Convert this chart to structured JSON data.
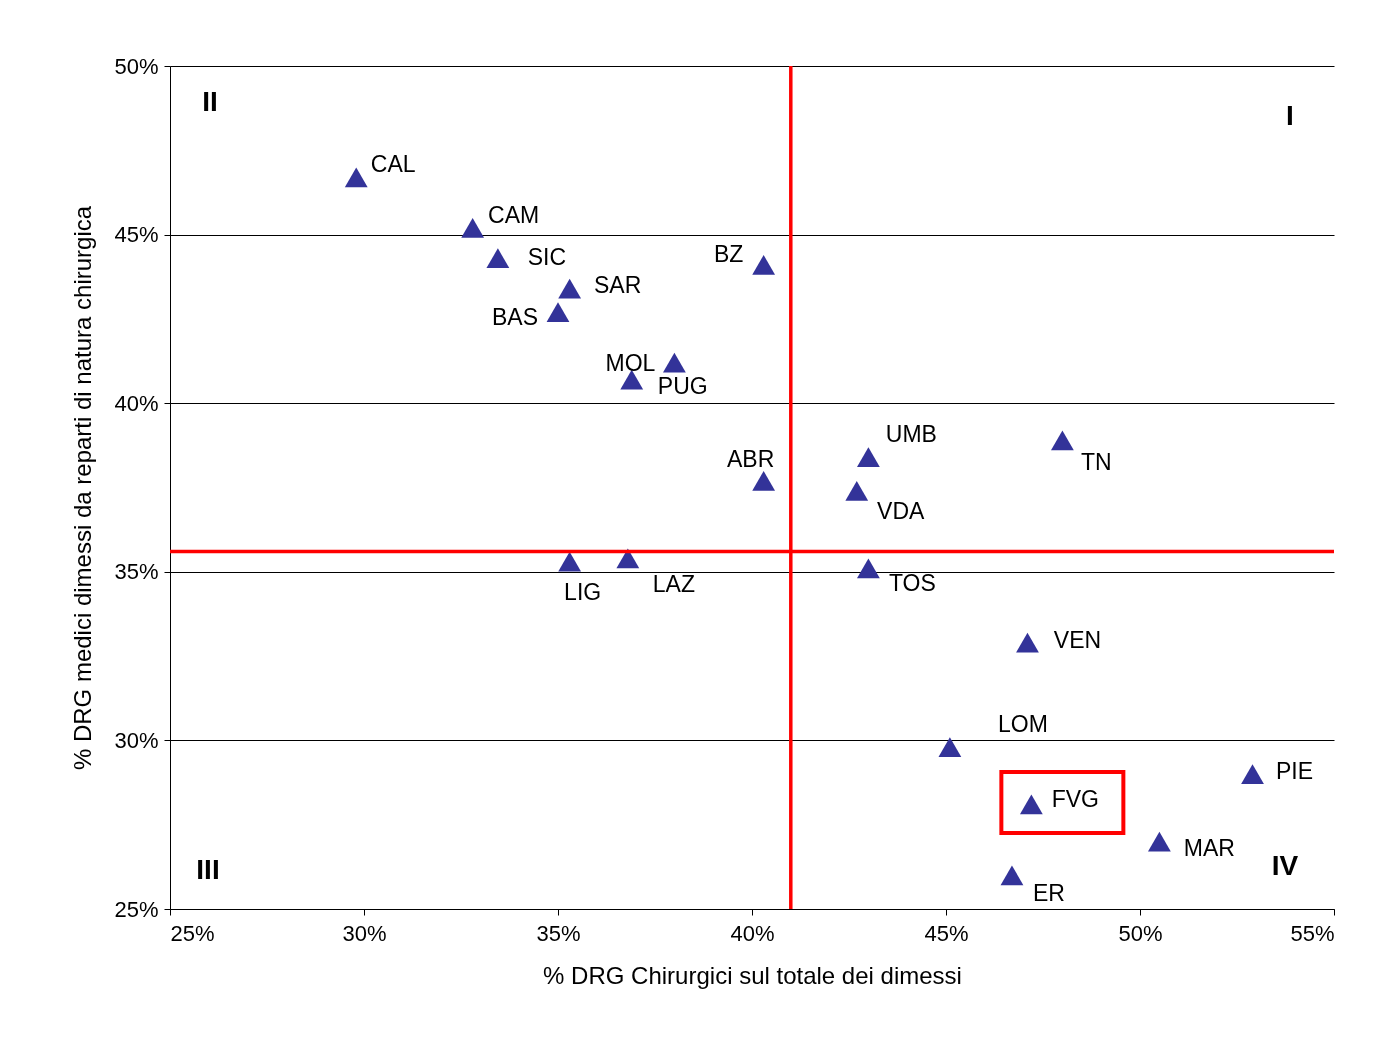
{
  "chart_data": {
    "type": "scatter",
    "xlabel": "% DRG Chirurgici sul totale dei dimessi",
    "ylabel": "% DRG medici dimessi da reparti di natura chirurgica",
    "x": [
      29.8,
      32.8,
      33.45,
      35.3,
      35.0,
      38.0,
      36.9,
      40.3,
      40.3,
      43.0,
      42.7,
      48.0,
      35.3,
      36.8,
      43.0,
      47.1,
      45.1,
      47.2,
      52.9,
      50.5,
      46.7
    ],
    "values": [
      46.7,
      45.2,
      44.3,
      43.4,
      42.7,
      41.2,
      40.7,
      44.1,
      37.7,
      38.4,
      37.4,
      38.9,
      35.3,
      35.4,
      35.1,
      32.9,
      29.8,
      28.1,
      29.0,
      27.0,
      26.0
    ],
    "color": "#333399",
    "marker": "triangle",
    "xlim": [
      25,
      55
    ],
    "xticks": [
      {
        "value": 25,
        "label": "25%"
      },
      {
        "value": 30,
        "label": "30%"
      },
      {
        "value": 35,
        "label": "35%"
      },
      {
        "value": 40,
        "label": "40%"
      },
      {
        "value": 45,
        "label": "45%"
      },
      {
        "value": 50,
        "label": "50%"
      },
      {
        "value": 55,
        "label": "55%"
      }
    ],
    "ylim": [
      25,
      50
    ],
    "yticks": [
      {
        "value": 25,
        "label": "25%"
      },
      {
        "value": 30,
        "label": "30%"
      },
      {
        "value": 35,
        "label": "35%"
      },
      {
        "value": 40,
        "label": "40%"
      },
      {
        "value": 45,
        "label": "45%"
      },
      {
        "value": 50,
        "label": "50%"
      }
    ],
    "grid": "y",
    "ref_lines": [
      {
        "axis": "x",
        "value": 41.0,
        "color": "#ff0000"
      },
      {
        "axis": "y",
        "value": 35.6,
        "color": "#ff0000"
      }
    ],
    "value_labels": [
      "CAL",
      "CAM",
      "SIC",
      "SAR",
      "BAS",
      "MOL",
      "PUG",
      "BZ",
      "ABR",
      "UMB",
      "VDA",
      "TN",
      "LIG",
      "LAZ",
      "TOS",
      "VEN",
      "LOM",
      "FVG",
      "PIE",
      "MAR",
      "ER"
    ],
    "annotations": [
      "II",
      "I",
      "III",
      "IV"
    ]
  }
}
